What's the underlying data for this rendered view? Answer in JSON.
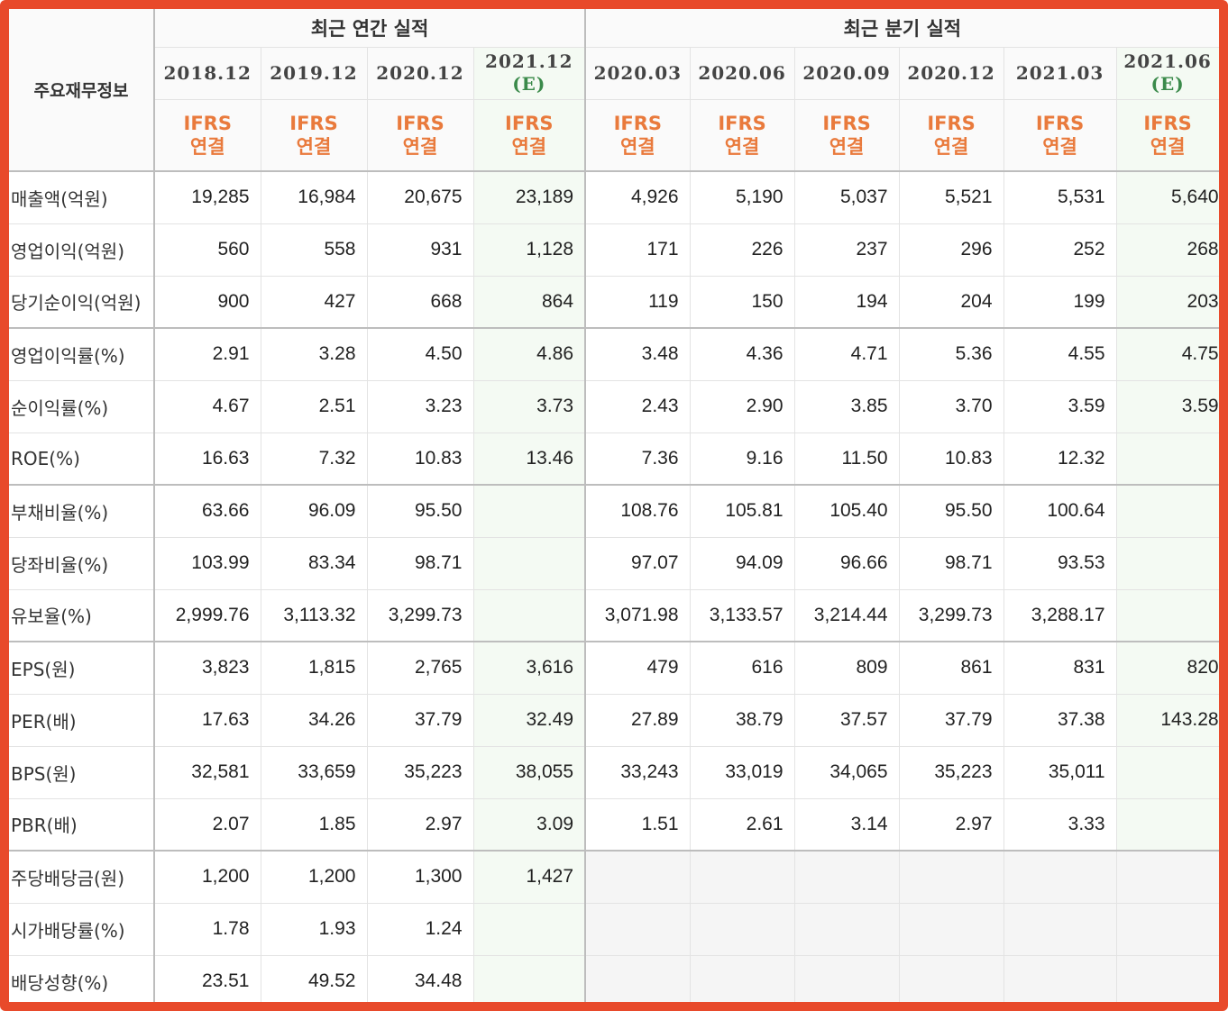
{
  "header": {
    "row_label_title": "주요재무정보",
    "annual_title": "최근 연간 실적",
    "quarter_title": "최근 분기 실적",
    "annual_periods": [
      {
        "date": "2018.12",
        "est": "",
        "basis1": "IFRS",
        "basis2": "연결"
      },
      {
        "date": "2019.12",
        "est": "",
        "basis1": "IFRS",
        "basis2": "연결"
      },
      {
        "date": "2020.12",
        "est": "",
        "basis1": "IFRS",
        "basis2": "연결"
      },
      {
        "date": "2021.12",
        "est": "(E)",
        "basis1": "IFRS",
        "basis2": "연결"
      }
    ],
    "quarter_periods": [
      {
        "date": "2020.03",
        "est": "",
        "basis1": "IFRS",
        "basis2": "연결"
      },
      {
        "date": "2020.06",
        "est": "",
        "basis1": "IFRS",
        "basis2": "연결"
      },
      {
        "date": "2020.09",
        "est": "",
        "basis1": "IFRS",
        "basis2": "연결"
      },
      {
        "date": "2020.12",
        "est": "",
        "basis1": "IFRS",
        "basis2": "연결"
      },
      {
        "date": "2021.03",
        "est": "",
        "basis1": "IFRS",
        "basis2": "연결"
      },
      {
        "date": "2021.06",
        "est": "(E)",
        "basis1": "IFRS",
        "basis2": "연결"
      }
    ]
  },
  "rows": [
    {
      "label": "매출액(억원)",
      "values": [
        "19,285",
        "16,984",
        "20,675",
        "23,189",
        "4,926",
        "5,190",
        "5,037",
        "5,521",
        "5,531",
        "5,640"
      ]
    },
    {
      "label": "영업이익(억원)",
      "values": [
        "560",
        "558",
        "931",
        "1,128",
        "171",
        "226",
        "237",
        "296",
        "252",
        "268"
      ]
    },
    {
      "label": "당기순이익(억원)",
      "values": [
        "900",
        "427",
        "668",
        "864",
        "119",
        "150",
        "194",
        "204",
        "199",
        "203"
      ]
    },
    {
      "label": "영업이익률(%)",
      "values": [
        "2.91",
        "3.28",
        "4.50",
        "4.86",
        "3.48",
        "4.36",
        "4.71",
        "5.36",
        "4.55",
        "4.75"
      ]
    },
    {
      "label": "순이익률(%)",
      "values": [
        "4.67",
        "2.51",
        "3.23",
        "3.73",
        "2.43",
        "2.90",
        "3.85",
        "3.70",
        "3.59",
        "3.59"
      ]
    },
    {
      "label": "ROE(%)",
      "values": [
        "16.63",
        "7.32",
        "10.83",
        "13.46",
        "7.36",
        "9.16",
        "11.50",
        "10.83",
        "12.32",
        ""
      ]
    },
    {
      "label": "부채비율(%)",
      "values": [
        "63.66",
        "96.09",
        "95.50",
        "",
        "108.76",
        "105.81",
        "105.40",
        "95.50",
        "100.64",
        ""
      ]
    },
    {
      "label": "당좌비율(%)",
      "values": [
        "103.99",
        "83.34",
        "98.71",
        "",
        "97.07",
        "94.09",
        "96.66",
        "98.71",
        "93.53",
        ""
      ]
    },
    {
      "label": "유보율(%)",
      "values": [
        "2,999.76",
        "3,113.32",
        "3,299.73",
        "",
        "3,071.98",
        "3,133.57",
        "3,214.44",
        "3,299.73",
        "3,288.17",
        ""
      ]
    },
    {
      "label": "EPS(원)",
      "values": [
        "3,823",
        "1,815",
        "2,765",
        "3,616",
        "479",
        "616",
        "809",
        "861",
        "831",
        "820"
      ]
    },
    {
      "label": "PER(배)",
      "values": [
        "17.63",
        "34.26",
        "37.79",
        "32.49",
        "27.89",
        "38.79",
        "37.57",
        "37.79",
        "37.38",
        "143.28"
      ]
    },
    {
      "label": "BPS(원)",
      "values": [
        "32,581",
        "33,659",
        "35,223",
        "38,055",
        "33,243",
        "33,019",
        "34,065",
        "35,223",
        "35,011",
        ""
      ]
    },
    {
      "label": "PBR(배)",
      "values": [
        "2.07",
        "1.85",
        "2.97",
        "3.09",
        "1.51",
        "2.61",
        "3.14",
        "2.97",
        "3.33",
        ""
      ]
    },
    {
      "label": "주당배당금(원)",
      "values": [
        "1,200",
        "1,200",
        "1,300",
        "1,427",
        "",
        "",
        "",
        "",
        "",
        ""
      ]
    },
    {
      "label": "시가배당률(%)",
      "values": [
        "1.78",
        "1.93",
        "1.24",
        "",
        "",
        "",
        "",
        "",
        "",
        ""
      ]
    },
    {
      "label": "배당성향(%)",
      "values": [
        "23.51",
        "49.52",
        "34.48",
        "",
        "",
        "",
        "",
        "",
        "",
        ""
      ]
    }
  ],
  "colors": {
    "frame": "#e84a2b",
    "ifrs": "#e97a3c",
    "estimate": "#3a8a4a"
  }
}
